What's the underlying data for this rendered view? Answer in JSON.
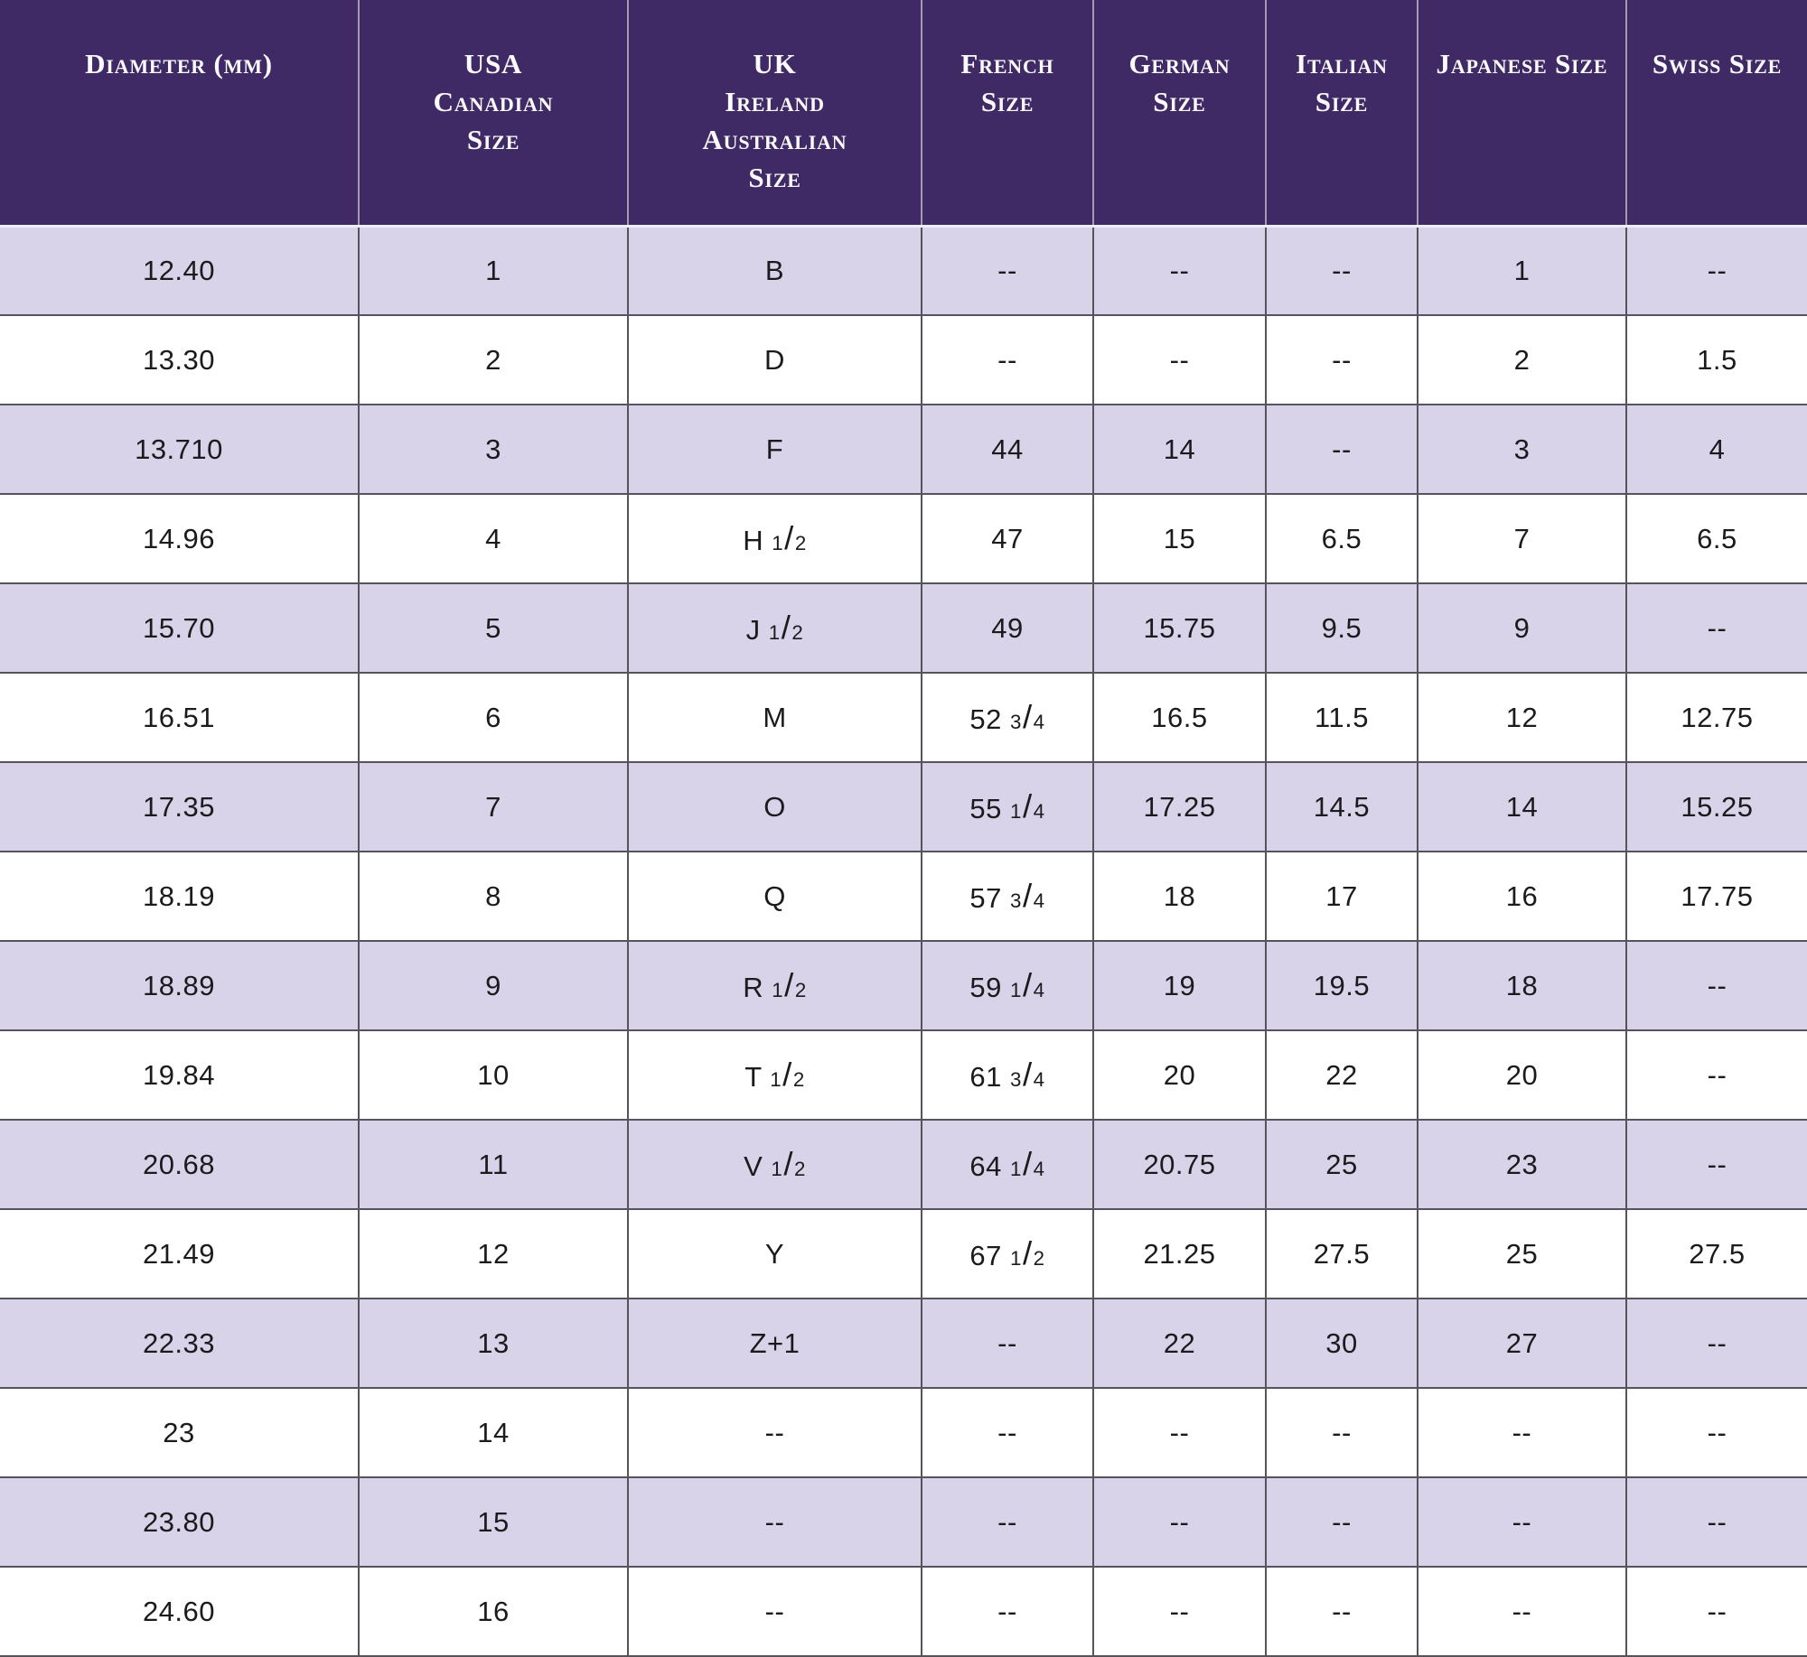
{
  "page": {
    "background": "#ffffff"
  },
  "chart_data": {
    "type": "table",
    "empty_cell_marker": "--",
    "colors": {
      "header_bg": "#402a65",
      "header_text": "#fbfafd",
      "row_alt_bg": "#d9d3e9",
      "row_bg": "#ffffff",
      "grid_line": "#57535d",
      "header_divider": "#a39bb6",
      "cell_text": "#1b1b1e"
    },
    "columns": [
      {
        "id": "diameter-mm",
        "label": "Diameter (mm)",
        "lines": [
          "Diameter (mm)"
        ]
      },
      {
        "id": "usa-canadian",
        "label": "USA Canadian Size",
        "lines": [
          "USA",
          "Canadian",
          "Size"
        ]
      },
      {
        "id": "uk-ireland-au",
        "label": "UK Ireland Australian Size",
        "lines": [
          "UK",
          "Ireland",
          "Australian",
          "Size"
        ]
      },
      {
        "id": "french",
        "label": "French Size",
        "lines": [
          "French",
          "Size"
        ]
      },
      {
        "id": "german",
        "label": "German Size",
        "lines": [
          "German",
          "Size"
        ]
      },
      {
        "id": "italian",
        "label": "Italian Size",
        "lines": [
          "Italian",
          "Size"
        ]
      },
      {
        "id": "japanese",
        "label": "Japanese Size",
        "lines": [
          "Japanese Size"
        ]
      },
      {
        "id": "swiss",
        "label": "Swiss Size",
        "lines": [
          "Swiss Size"
        ]
      }
    ],
    "rows": [
      [
        "12.40",
        "1",
        "B",
        "--",
        "--",
        "--",
        "1",
        "--"
      ],
      [
        "13.30",
        "2",
        "D",
        "--",
        "--",
        "--",
        "2",
        "1.5"
      ],
      [
        "13.710",
        "3",
        "F",
        "44",
        "14",
        "--",
        "3",
        "4"
      ],
      [
        "14.96",
        "4",
        "H 1/2",
        "47",
        "15",
        "6.5",
        "7",
        "6.5"
      ],
      [
        "15.70",
        "5",
        "J 1/2",
        "49",
        "15.75",
        "9.5",
        "9",
        "--"
      ],
      [
        "16.51",
        "6",
        "M",
        "52 3/4",
        "16.5",
        "11.5",
        "12",
        "12.75"
      ],
      [
        "17.35",
        "7",
        "O",
        "55 1/4",
        "17.25",
        "14.5",
        "14",
        "15.25"
      ],
      [
        "18.19",
        "8",
        "Q",
        "57 3/4",
        "18",
        "17",
        "16",
        "17.75"
      ],
      [
        "18.89",
        "9",
        "R 1/2",
        "59 1/4",
        "19",
        "19.5",
        "18",
        "--"
      ],
      [
        "19.84",
        "10",
        "T 1/2",
        "61 3/4",
        "20",
        "22",
        "20",
        "--"
      ],
      [
        "20.68",
        "11",
        "V 1/2",
        "64 1/4",
        "20.75",
        "25",
        "23",
        "--"
      ],
      [
        "21.49",
        "12",
        "Y",
        "67 1/2",
        "21.25",
        "27.5",
        "25",
        "27.5"
      ],
      [
        "22.33",
        "13",
        "Z+1",
        "--",
        "22",
        "30",
        "27",
        "--"
      ],
      [
        "23",
        "14",
        "--",
        "--",
        "--",
        "--",
        "--",
        "--"
      ],
      [
        "23.80",
        "15",
        "--",
        "--",
        "--",
        "--",
        "--",
        "--"
      ],
      [
        "24.60",
        "16",
        "--",
        "--",
        "--",
        "--",
        "--",
        "--"
      ]
    ]
  }
}
